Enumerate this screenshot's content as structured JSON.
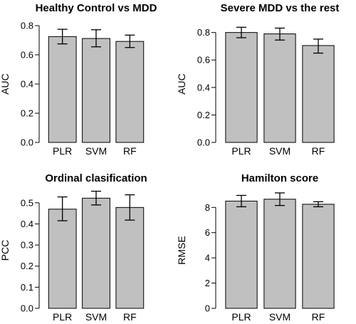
{
  "chart_data": [
    {
      "type": "bar",
      "title": "Healthy Control vs MDD",
      "ylabel": "AUC",
      "xlabel": "",
      "categories": [
        "PLR",
        "SVM",
        "RF"
      ],
      "values": [
        0.725,
        0.712,
        0.692
      ],
      "error_low": [
        0.675,
        0.655,
        0.65
      ],
      "error_high": [
        0.775,
        0.772,
        0.735
      ],
      "ylim": [
        0,
        0.8
      ],
      "yticks": [
        0.0,
        0.2,
        0.4,
        0.6,
        0.8
      ],
      "ytick_labels": [
        "0.0",
        "0.2",
        "0.4",
        "0.6",
        "0.8"
      ],
      "bar_color": "#c0c0c0",
      "grid": false
    },
    {
      "type": "bar",
      "title": "Severe MDD vs the rest",
      "ylabel": "AUC",
      "xlabel": "",
      "categories": [
        "PLR",
        "SVM",
        "RF"
      ],
      "values": [
        0.8,
        0.79,
        0.705
      ],
      "error_low": [
        0.762,
        0.745,
        0.65
      ],
      "error_high": [
        0.838,
        0.832,
        0.752
      ],
      "ylim": [
        0,
        0.85
      ],
      "yticks": [
        0.0,
        0.2,
        0.4,
        0.6,
        0.8
      ],
      "ytick_labels": [
        "0.0",
        "0.2",
        "0.4",
        "0.6",
        "0.8"
      ],
      "bar_color": "#c0c0c0",
      "grid": false
    },
    {
      "type": "bar",
      "title": "Ordinal clasification",
      "ylabel": "PCC",
      "xlabel": "",
      "categories": [
        "PLR",
        "SVM",
        "RF"
      ],
      "values": [
        0.47,
        0.522,
        0.478
      ],
      "error_low": [
        0.415,
        0.49,
        0.418
      ],
      "error_high": [
        0.528,
        0.555,
        0.538
      ],
      "ylim": [
        0,
        0.55
      ],
      "yticks": [
        0.0,
        0.1,
        0.2,
        0.3,
        0.4,
        0.5
      ],
      "ytick_labels": [
        "0.0",
        "0.1",
        "0.2",
        "0.3",
        "0.4",
        "0.5"
      ],
      "bar_color": "#c0c0c0",
      "grid": false
    },
    {
      "type": "bar",
      "title": "Hamilton score",
      "ylabel": "RMSE",
      "xlabel": "",
      "categories": [
        "PLR",
        "SVM",
        "RF"
      ],
      "values": [
        8.5,
        8.65,
        8.25
      ],
      "error_low": [
        8.05,
        8.15,
        8.05
      ],
      "error_high": [
        8.95,
        9.15,
        8.45
      ],
      "ylim": [
        0,
        9.2
      ],
      "yticks": [
        0,
        2,
        4,
        6,
        8
      ],
      "ytick_labels": [
        "0",
        "2",
        "4",
        "6",
        "8"
      ],
      "bar_color": "#c0c0c0",
      "grid": false
    }
  ]
}
